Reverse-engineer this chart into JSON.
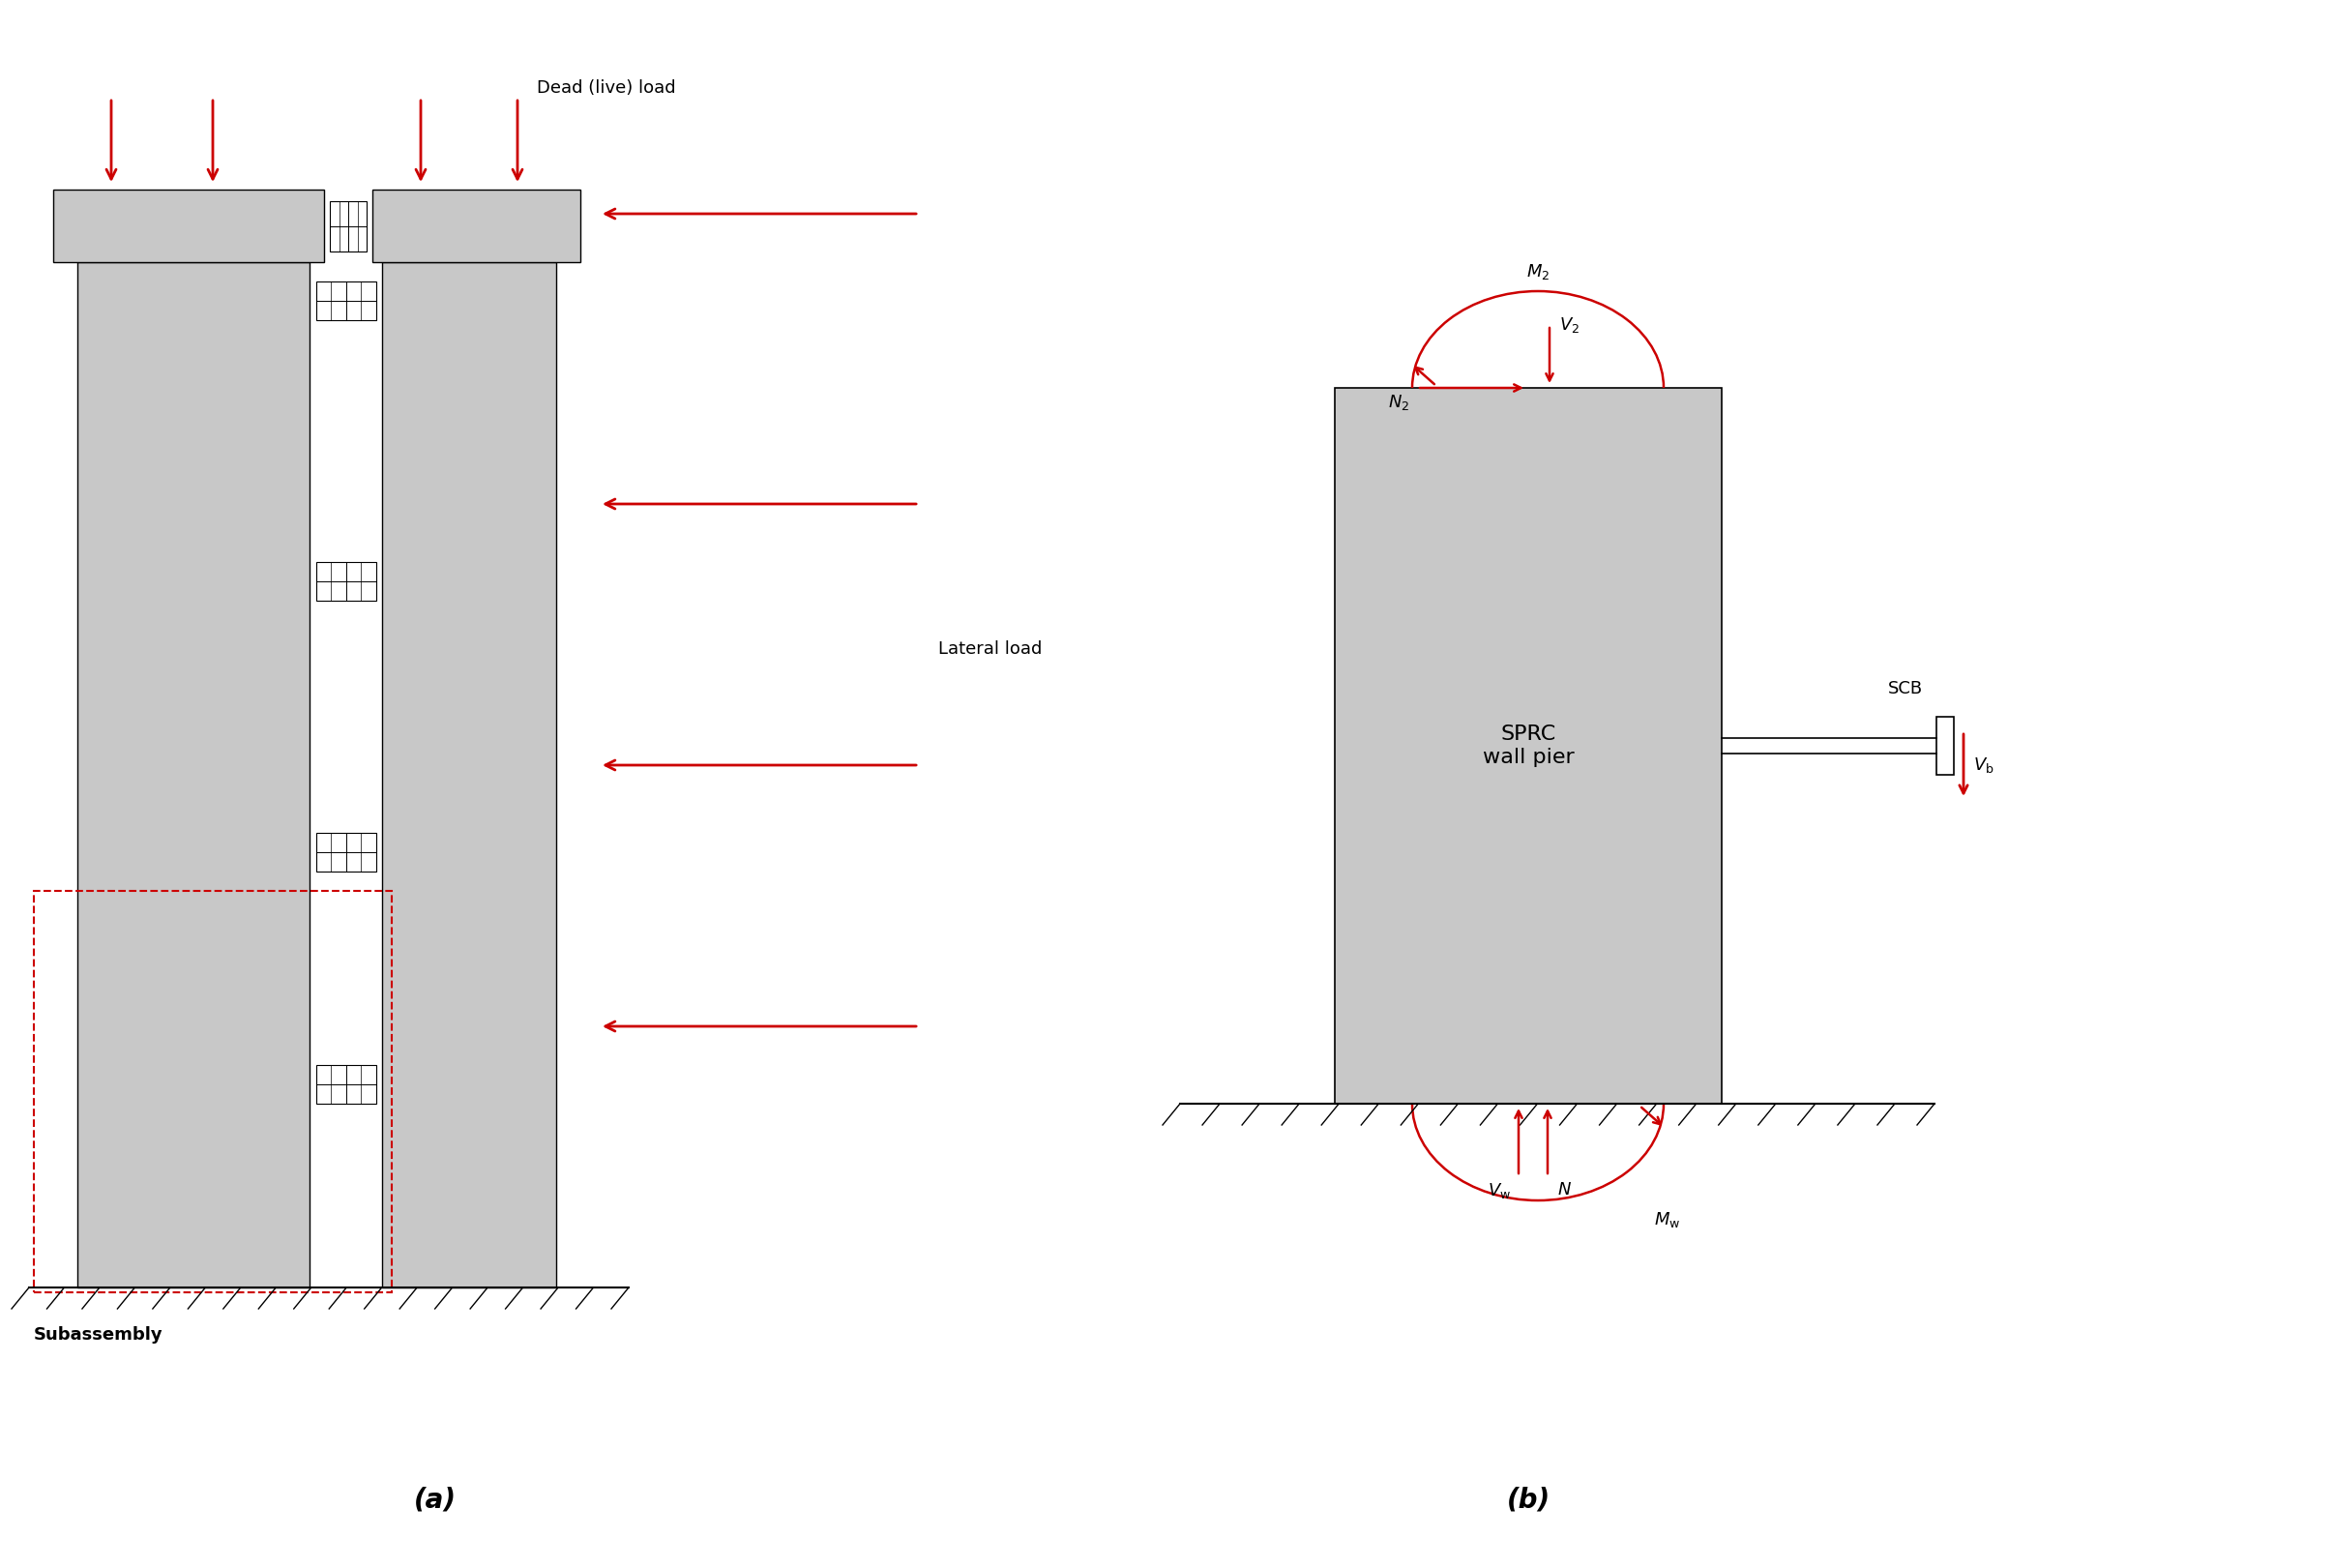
{
  "fig_width": 24.12,
  "fig_height": 16.21,
  "bg_color": "#ffffff",
  "gray_fill": "#c8c8c8",
  "red_color": "#cc0000",
  "black_color": "#000000",
  "label_a": "(a)",
  "label_b": "(b)",
  "dead_live_load": "Dead (live) load",
  "lateral_load": "Lateral load",
  "subassembly": "Subassembly",
  "sprc_text": "SPRC\nwall pier",
  "scb_text": "SCB"
}
